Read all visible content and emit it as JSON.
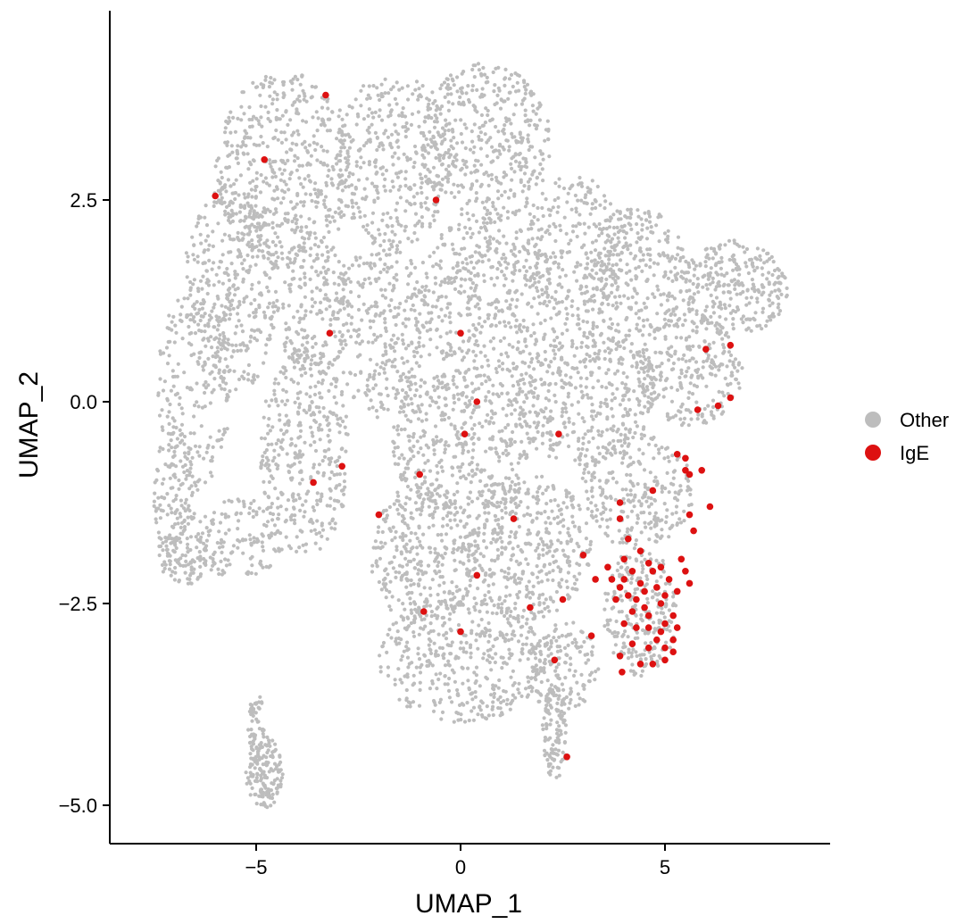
{
  "chart_data": {
    "type": "scatter",
    "title": "",
    "xlabel": "UMAP_1",
    "ylabel": "UMAP_2",
    "xlim": [
      -8.5,
      9.0
    ],
    "ylim": [
      -5.4,
      4.8
    ],
    "x_ticks": [
      -5,
      0,
      5
    ],
    "x_tick_labels": [
      "−5",
      "0",
      "5"
    ],
    "y_ticks": [
      -5.0,
      -2.5,
      0.0,
      2.5
    ],
    "y_tick_labels": [
      "−5.0",
      "−2.5",
      "0.0",
      "2.5"
    ],
    "grid": false,
    "legend_position": "right",
    "series": [
      {
        "name": "Other",
        "color": "#bdbdbd",
        "note": "dense background population of several thousand cells spanning roughly x -7.6..8.2, y -5.0..4.3",
        "regions": [
          {
            "cx": -4.3,
            "cy": 2.9,
            "rx": 1.7,
            "ry": 1.2,
            "n": 520
          },
          {
            "cx": -5.6,
            "cy": 1.4,
            "rx": 1.2,
            "ry": 1.3,
            "n": 360
          },
          {
            "cx": -6.5,
            "cy": 0.2,
            "rx": 0.9,
            "ry": 1.3,
            "n": 200
          },
          {
            "cx": -7.0,
            "cy": -1.2,
            "rx": 0.5,
            "ry": 0.9,
            "n": 140
          },
          {
            "cx": -6.8,
            "cy": -1.9,
            "rx": 0.6,
            "ry": 0.4,
            "n": 90
          },
          {
            "cx": -5.4,
            "cy": -1.7,
            "rx": 1.1,
            "ry": 0.5,
            "n": 140
          },
          {
            "cx": -3.8,
            "cy": -0.6,
            "rx": 1.1,
            "ry": 1.3,
            "n": 380
          },
          {
            "cx": -3.6,
            "cy": 1.2,
            "rx": 0.9,
            "ry": 0.9,
            "n": 200
          },
          {
            "cx": -1.9,
            "cy": 0.9,
            "rx": 1.2,
            "ry": 1.1,
            "n": 300
          },
          {
            "cx": -1.6,
            "cy": 3.0,
            "rx": 1.4,
            "ry": 1.1,
            "n": 360
          },
          {
            "cx": 0.6,
            "cy": 3.2,
            "rx": 1.6,
            "ry": 1.0,
            "n": 420
          },
          {
            "cx": 0.6,
            "cy": 1.3,
            "rx": 1.7,
            "ry": 1.0,
            "n": 420
          },
          {
            "cx": 2.8,
            "cy": 1.9,
            "rx": 1.3,
            "ry": 0.9,
            "n": 260
          },
          {
            "cx": 4.3,
            "cy": 1.6,
            "rx": 1.3,
            "ry": 0.8,
            "n": 300
          },
          {
            "cx": 6.7,
            "cy": 1.4,
            "rx": 1.3,
            "ry": 0.6,
            "n": 280
          },
          {
            "cx": 5.6,
            "cy": 0.4,
            "rx": 1.3,
            "ry": 0.7,
            "n": 260
          },
          {
            "cx": 3.0,
            "cy": 0.1,
            "rx": 1.8,
            "ry": 0.9,
            "n": 460
          },
          {
            "cx": 0.0,
            "cy": -0.5,
            "rx": 1.7,
            "ry": 0.9,
            "n": 420
          },
          {
            "cx": -0.9,
            "cy": -1.9,
            "rx": 1.3,
            "ry": 0.9,
            "n": 340
          },
          {
            "cx": 1.6,
            "cy": -1.8,
            "rx": 1.6,
            "ry": 0.9,
            "n": 440
          },
          {
            "cx": 4.3,
            "cy": -1.1,
            "rx": 1.4,
            "ry": 0.7,
            "n": 260
          },
          {
            "cx": 4.4,
            "cy": -2.6,
            "rx": 0.9,
            "ry": 0.8,
            "n": 240
          },
          {
            "cx": 0.0,
            "cy": -3.2,
            "rx": 2.0,
            "ry": 0.8,
            "n": 420
          },
          {
            "cx": 2.5,
            "cy": -3.3,
            "rx": 0.9,
            "ry": 0.6,
            "n": 160
          },
          {
            "cx": 2.3,
            "cy": -4.1,
            "rx": 0.3,
            "ry": 0.6,
            "n": 110
          },
          {
            "cx": -4.8,
            "cy": -4.6,
            "rx": 0.45,
            "ry": 0.45,
            "n": 150
          },
          {
            "cx": -5.0,
            "cy": -4.0,
            "rx": 0.2,
            "ry": 0.4,
            "n": 50
          }
        ]
      },
      {
        "name": "IgE",
        "color": "#dd1111",
        "points": [
          [
            -3.3,
            3.8
          ],
          [
            -4.8,
            3.0
          ],
          [
            -6.0,
            2.55
          ],
          [
            -0.6,
            2.5
          ],
          [
            -3.2,
            0.85
          ],
          [
            0.0,
            0.85
          ],
          [
            0.4,
            0.0
          ],
          [
            0.1,
            -0.4
          ],
          [
            2.4,
            -0.4
          ],
          [
            -1.0,
            -0.9
          ],
          [
            -2.9,
            -0.8
          ],
          [
            -3.6,
            -1.0
          ],
          [
            -2.0,
            -1.4
          ],
          [
            1.3,
            -1.45
          ],
          [
            0.4,
            -2.15
          ],
          [
            -0.9,
            -2.6
          ],
          [
            0.0,
            -2.85
          ],
          [
            1.7,
            -2.55
          ],
          [
            2.5,
            -2.45
          ],
          [
            2.3,
            -3.2
          ],
          [
            3.2,
            -2.9
          ],
          [
            2.6,
            -4.4
          ],
          [
            5.3,
            -0.65
          ],
          [
            5.5,
            -0.7
          ],
          [
            5.5,
            -0.85
          ],
          [
            5.6,
            -0.9
          ],
          [
            5.9,
            -0.85
          ],
          [
            5.6,
            -1.4
          ],
          [
            5.7,
            -1.6
          ],
          [
            6.1,
            -1.3
          ],
          [
            4.7,
            -1.1
          ],
          [
            3.9,
            -1.25
          ],
          [
            3.9,
            -1.45
          ],
          [
            5.8,
            -0.1
          ],
          [
            6.0,
            0.65
          ],
          [
            6.6,
            0.7
          ],
          [
            6.3,
            -0.05
          ],
          [
            6.6,
            0.05
          ],
          [
            3.0,
            -1.9
          ],
          [
            4.1,
            -1.7
          ],
          [
            4.6,
            -2.0
          ],
          [
            4.2,
            -2.1
          ],
          [
            4.0,
            -2.2
          ],
          [
            3.9,
            -2.3
          ],
          [
            3.8,
            -2.45
          ],
          [
            4.4,
            -2.25
          ],
          [
            4.7,
            -2.1
          ],
          [
            4.8,
            -2.3
          ],
          [
            5.1,
            -2.2
          ],
          [
            5.3,
            -2.35
          ],
          [
            5.5,
            -2.1
          ],
          [
            5.6,
            -2.25
          ],
          [
            4.9,
            -2.5
          ],
          [
            4.5,
            -2.55
          ],
          [
            4.2,
            -2.6
          ],
          [
            4.0,
            -2.75
          ],
          [
            3.7,
            -2.2
          ],
          [
            3.6,
            -2.05
          ],
          [
            3.3,
            -2.2
          ],
          [
            4.3,
            -2.45
          ],
          [
            5.0,
            -2.75
          ],
          [
            5.2,
            -2.65
          ],
          [
            4.8,
            -2.95
          ],
          [
            4.6,
            -3.05
          ],
          [
            4.2,
            -3.0
          ],
          [
            3.9,
            -3.15
          ],
          [
            4.4,
            -3.25
          ],
          [
            4.7,
            -3.25
          ],
          [
            5.0,
            -3.2
          ],
          [
            5.0,
            -3.05
          ],
          [
            4.9,
            -2.85
          ],
          [
            5.3,
            -2.8
          ],
          [
            5.2,
            -2.95
          ],
          [
            4.6,
            -2.8
          ],
          [
            4.3,
            -2.8
          ],
          [
            3.95,
            -3.35
          ],
          [
            4.5,
            -2.35
          ],
          [
            4.9,
            -2.05
          ],
          [
            5.4,
            -1.95
          ],
          [
            4.4,
            -1.85
          ],
          [
            4.0,
            -1.95
          ],
          [
            5.2,
            -3.1
          ],
          [
            4.1,
            -2.4
          ],
          [
            5.0,
            -2.4
          ],
          [
            4.6,
            -2.65
          ]
        ]
      }
    ],
    "legend": [
      {
        "label": "Other",
        "color": "#bdbdbd"
      },
      {
        "label": "IgE",
        "color": "#dd1111"
      }
    ]
  }
}
